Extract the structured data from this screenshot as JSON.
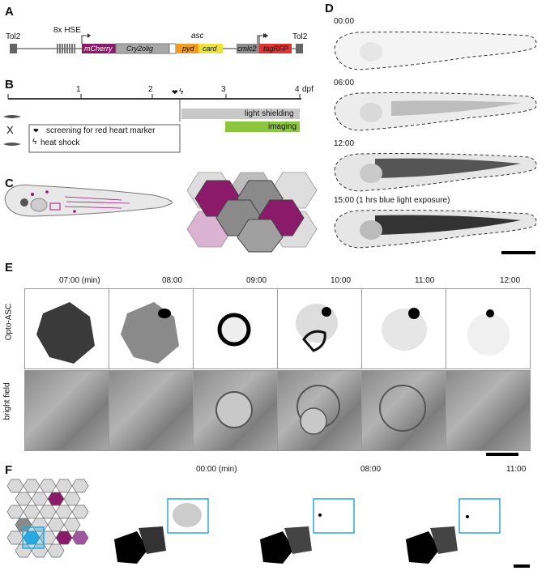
{
  "panels": {
    "A": "A",
    "B": "B",
    "C": "C",
    "D": "D",
    "E": "E",
    "F": "F"
  },
  "construct": {
    "tol2_left": "Tol2",
    "hse": "8x HSE",
    "mcherry": "mCherry",
    "cry2olig": "Cry2olig",
    "asc": "asc",
    "pyd": "pyd",
    "card": "card",
    "cmlc2": "cmlc2",
    "tagrfp": "tagRFP",
    "tol2_right": "Tol2",
    "colors": {
      "mcherry": "#8b1a6b",
      "cry2olig": "#a8a8a8",
      "pyd": "#f29b1d",
      "card": "#e8e23a",
      "cmlc2": "#9a9a9a",
      "tagrfp": "#e03030"
    }
  },
  "timeline": {
    "ticks": [
      "1",
      "2",
      "3",
      "4"
    ],
    "unit": "dpf",
    "cross": "X",
    "heart_symbol": "❤",
    "bolt_symbol": "ϟ",
    "legend_heart": "screening for red heart marker",
    "legend_heat": "heat shock",
    "bar_light": "light shielding",
    "bar_imaging": "imaging",
    "colors": {
      "light": "#c8c8c8",
      "imaging": "#8cc63f"
    }
  },
  "panel_d": {
    "times": [
      "00:00",
      "06:00",
      "12:00",
      "15:00 (1 hrs blue light exposure)"
    ]
  },
  "panel_e": {
    "times": [
      "07:00 (min)",
      "08:00",
      "09:00",
      "10:00",
      "11:00",
      "12:00"
    ],
    "row_labels": [
      "Opto-ASC",
      "bright field"
    ]
  },
  "panel_f": {
    "times": [
      "00:00 (min)",
      "08:00",
      "11:00"
    ],
    "box_color": "#29a8e0"
  },
  "colors": {
    "magenta": "#8b1a6b",
    "pink": "#d08ac0",
    "grey_hex": "#8a8a8a",
    "light_hex": "#d9d9d9"
  }
}
